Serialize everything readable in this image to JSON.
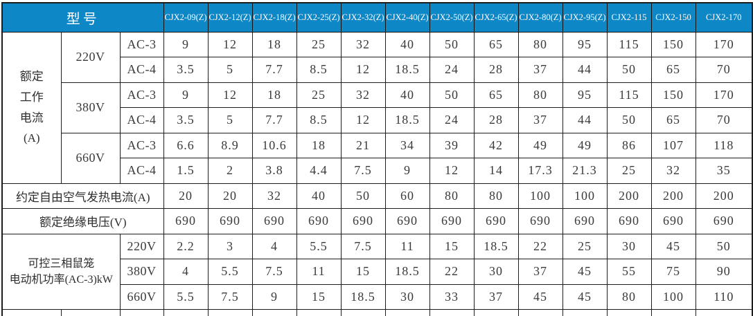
{
  "colors": {
    "header_bg": "#0E87C7",
    "header_text": "#FFFFFF",
    "border": "#1C1C1C"
  },
  "table": {
    "model_header": "型号",
    "model_columns": [
      "CJX2-09(Z)",
      "CJX2-12(Z)",
      "CJX2-18(Z)",
      "CJX2-25(Z)",
      "CJX2-32(Z)",
      "CJX2-40(Z)",
      "CJX2-50(Z)",
      "CJX2-65(Z)",
      "CJX2-80(Z)",
      "CJX2-95(Z)",
      "CJX2-115",
      "CJX2-150",
      "CJX2-170"
    ],
    "sections": {
      "rated_current": {
        "label_lines": [
          "额定",
          "工作",
          "电流",
          "(A)"
        ],
        "ac3_label": "AC-3",
        "ac4_label": "AC-4",
        "groups": [
          {
            "voltage": "220V",
            "ac3": [
              "9",
              "12",
              "18",
              "25",
              "32",
              "40",
              "50",
              "65",
              "80",
              "95",
              "115",
              "150",
              "170"
            ],
            "ac4": [
              "3.5",
              "5",
              "7.7",
              "8.5",
              "12",
              "18.5",
              "24",
              "28",
              "37",
              "44",
              "50",
              "65",
              "70"
            ]
          },
          {
            "voltage": "380V",
            "ac3": [
              "9",
              "12",
              "18",
              "25",
              "32",
              "40",
              "50",
              "65",
              "80",
              "95",
              "115",
              "150",
              "170"
            ],
            "ac4": [
              "3.5",
              "5",
              "7.7",
              "8.5",
              "12",
              "18.5",
              "24",
              "28",
              "37",
              "44",
              "50",
              "65",
              "70"
            ]
          },
          {
            "voltage": "660V",
            "ac3": [
              "6.6",
              "8.9",
              "10.6",
              "18",
              "21",
              "34",
              "39",
              "42",
              "49",
              "49",
              "86",
              "107",
              "118"
            ],
            "ac4": [
              "1.5",
              "2",
              "3.8",
              "4.4",
              "7.5",
              "9",
              "12",
              "14",
              "17.3",
              "21.3",
              "25",
              "32",
              "35"
            ]
          }
        ]
      },
      "thermal_current": {
        "label": "约定自由空气发热电流(A)",
        "values": [
          "20",
          "20",
          "32",
          "40",
          "50",
          "60",
          "80",
          "80",
          "100",
          "100",
          "200",
          "200",
          "200"
        ]
      },
      "insulation_voltage": {
        "label": "额定绝缘电压(V)",
        "values": [
          "690",
          "690",
          "690",
          "690",
          "690",
          "690",
          "690",
          "690",
          "690",
          "690",
          "690",
          "690",
          "690"
        ]
      },
      "motor_power": {
        "label_lines": [
          "可控三相鼠笼",
          "电动机功率(AC-3)kW"
        ],
        "rows": [
          {
            "voltage": "220V",
            "values": [
              "2.2",
              "3",
              "4",
              "5.5",
              "7.5",
              "11",
              "15",
              "18.5",
              "22",
              "25",
              "30",
              "45",
              "50"
            ]
          },
          {
            "voltage": "380V",
            "values": [
              "4",
              "5.5",
              "7.5",
              "11",
              "15",
              "18.5",
              "22",
              "30",
              "37",
              "45",
              "55",
              "75",
              "90"
            ]
          },
          {
            "voltage": "660V",
            "values": [
              "5.5",
              "7.5",
              "9",
              "15",
              "18.5",
              "30",
              "33",
              "37",
              "45",
              "45",
              "80",
              "100",
              "110"
            ]
          }
        ]
      }
    }
  }
}
